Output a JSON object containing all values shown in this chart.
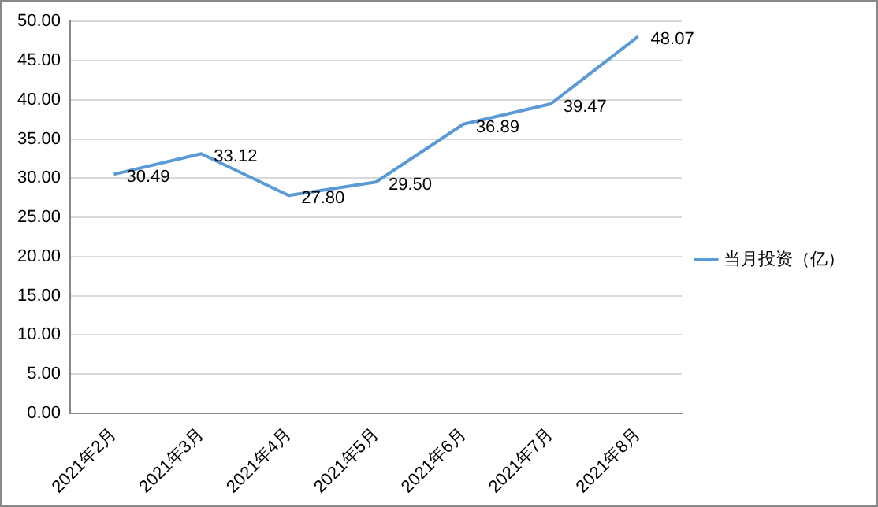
{
  "chart_data": {
    "type": "line",
    "categories": [
      "2021年2月",
      "2021年3月",
      "2021年4月",
      "2021年5月",
      "2021年6月",
      "2021年7月",
      "2021年8月"
    ],
    "series": [
      {
        "name": "当月投资（亿）",
        "color": "#5b9bd5",
        "values": [
          30.49,
          33.12,
          27.8,
          29.5,
          36.89,
          39.47,
          48.07
        ],
        "value_labels": [
          "30.49",
          "33.12",
          "27.80",
          "29.50",
          "36.89",
          "39.47",
          "48.07"
        ]
      }
    ],
    "ylim": [
      0,
      50
    ],
    "yticks": [
      {
        "value": 0,
        "label": "0.00"
      },
      {
        "value": 5,
        "label": "5.00"
      },
      {
        "value": 10,
        "label": "10.00"
      },
      {
        "value": 15,
        "label": "15.00"
      },
      {
        "value": 20,
        "label": "20.00"
      },
      {
        "value": 25,
        "label": "25.00"
      },
      {
        "value": 30,
        "label": "30.00"
      },
      {
        "value": 35,
        "label": "35.00"
      },
      {
        "value": 40,
        "label": "40.00"
      },
      {
        "value": 45,
        "label": "45.00"
      },
      {
        "value": 50,
        "label": "50.00"
      }
    ],
    "grid": "y",
    "legend": "right",
    "marker": "none",
    "line_style": "solid"
  }
}
